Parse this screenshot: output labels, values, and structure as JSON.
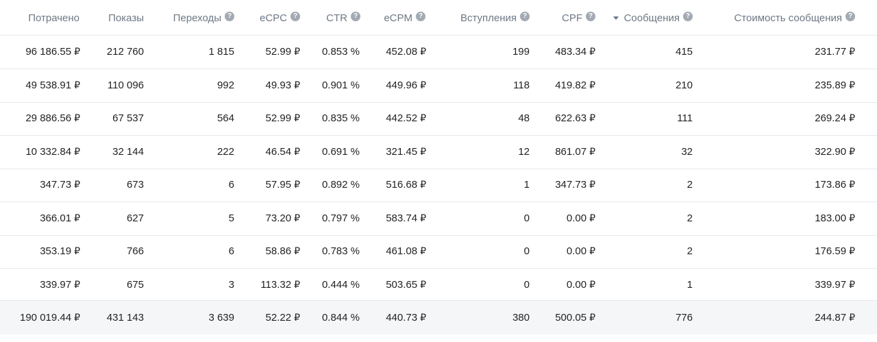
{
  "currency": "₽",
  "columns": [
    {
      "key": "spent",
      "label": "Потрачено",
      "help": false,
      "sort": false
    },
    {
      "key": "impressions",
      "label": "Показы",
      "help": false,
      "sort": false
    },
    {
      "key": "clicks",
      "label": "Переходы",
      "help": true,
      "sort": false
    },
    {
      "key": "ecpc",
      "label": "eCPC",
      "help": true,
      "sort": false
    },
    {
      "key": "ctr",
      "label": "CTR",
      "help": true,
      "sort": false
    },
    {
      "key": "ecpm",
      "label": "eCPM",
      "help": true,
      "sort": false
    },
    {
      "key": "joins",
      "label": "Вступления",
      "help": true,
      "sort": false
    },
    {
      "key": "cpf",
      "label": "CPF",
      "help": true,
      "sort": false
    },
    {
      "key": "messages",
      "label": "Сообщения",
      "help": true,
      "sort": true
    },
    {
      "key": "message_cost",
      "label": "Стоимость сообщения",
      "help": true,
      "sort": false
    }
  ],
  "help_glyph": "?",
  "rows": [
    {
      "spent": "96 186.55",
      "impressions": "212 760",
      "clicks": "1 815",
      "ecpc": "52.99",
      "ctr": "0.853 %",
      "ecpm": "452.08",
      "joins": "199",
      "cpf": "483.34",
      "messages": "415",
      "message_cost": "231.77"
    },
    {
      "spent": "49 538.91",
      "impressions": "110 096",
      "clicks": "992",
      "ecpc": "49.93",
      "ctr": "0.901 %",
      "ecpm": "449.96",
      "joins": "118",
      "cpf": "419.82",
      "messages": "210",
      "message_cost": "235.89"
    },
    {
      "spent": "29 886.56",
      "impressions": "67 537",
      "clicks": "564",
      "ecpc": "52.99",
      "ctr": "0.835 %",
      "ecpm": "442.52",
      "joins": "48",
      "cpf": "622.63",
      "messages": "111",
      "message_cost": "269.24"
    },
    {
      "spent": "10 332.84",
      "impressions": "32 144",
      "clicks": "222",
      "ecpc": "46.54",
      "ctr": "0.691 %",
      "ecpm": "321.45",
      "joins": "12",
      "cpf": "861.07",
      "messages": "32",
      "message_cost": "322.90"
    },
    {
      "spent": "347.73",
      "impressions": "673",
      "clicks": "6",
      "ecpc": "57.95",
      "ctr": "0.892 %",
      "ecpm": "516.68",
      "joins": "1",
      "cpf": "347.73",
      "messages": "2",
      "message_cost": "173.86"
    },
    {
      "spent": "366.01",
      "impressions": "627",
      "clicks": "5",
      "ecpc": "73.20",
      "ctr": "0.797 %",
      "ecpm": "583.74",
      "joins": "0",
      "cpf": "0.00",
      "messages": "2",
      "message_cost": "183.00"
    },
    {
      "spent": "353.19",
      "impressions": "766",
      "clicks": "6",
      "ecpc": "58.86",
      "ctr": "0.783 %",
      "ecpm": "461.08",
      "joins": "0",
      "cpf": "0.00",
      "messages": "2",
      "message_cost": "176.59"
    },
    {
      "spent": "339.97",
      "impressions": "675",
      "clicks": "3",
      "ecpc": "113.32",
      "ctr": "0.444 %",
      "ecpm": "503.65",
      "joins": "0",
      "cpf": "0.00",
      "messages": "1",
      "message_cost": "339.97"
    }
  ],
  "total": {
    "spent": "190 019.44",
    "impressions": "431 143",
    "clicks": "3 639",
    "ecpc": "52.22",
    "ctr": "0.844 %",
    "ecpm": "440.73",
    "joins": "380",
    "cpf": "500.05",
    "messages": "776",
    "message_cost": "244.87"
  },
  "currency_columns": [
    "spent",
    "ecpc",
    "ecpm",
    "cpf",
    "message_cost"
  ],
  "colors": {
    "header_text": "#6d7885",
    "body_text": "#222222",
    "border": "#e7e8ec",
    "total_bg": "#f5f6f8",
    "help_icon_bg": "#a3aab3"
  }
}
